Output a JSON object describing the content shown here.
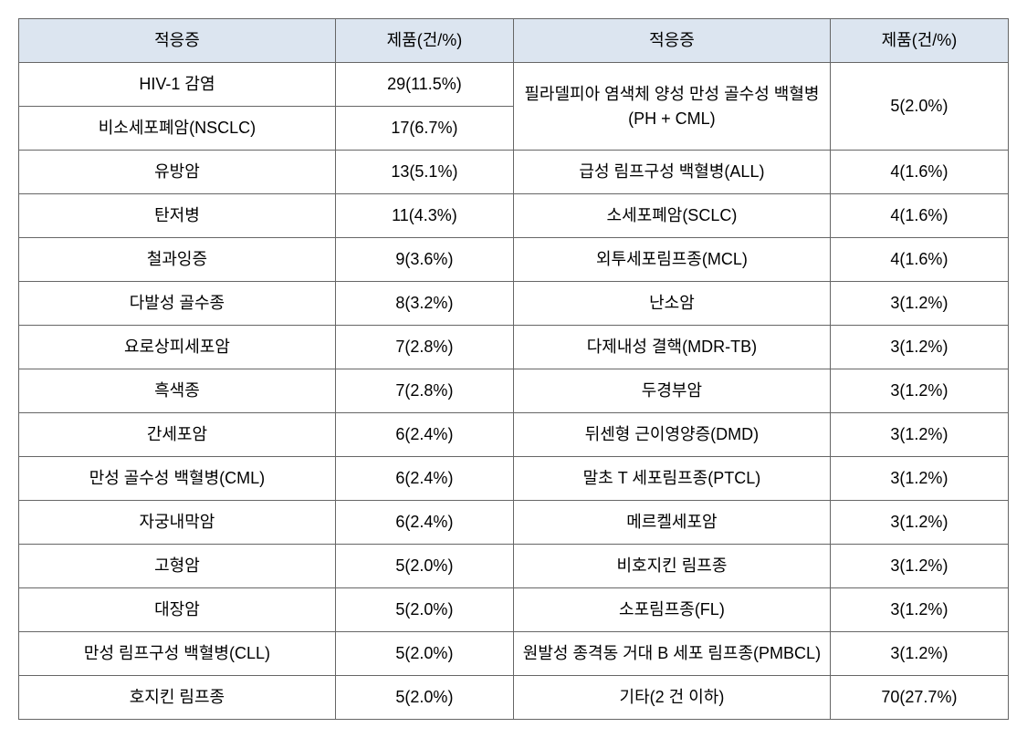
{
  "table": {
    "type": "table",
    "header_bg_color": "#dce5f0",
    "border_color": "#666666",
    "text_color": "#000000",
    "font_size": 18,
    "headers": {
      "col1": "적응증",
      "col2": "제품(건/%)",
      "col3": "적응증",
      "col4": "제품(건/%)"
    },
    "left_rows": [
      {
        "indication": "HIV-1 감염",
        "count": "29(11.5%)"
      },
      {
        "indication": "비소세포폐암(NSCLC)",
        "count": "17(6.7%)"
      },
      {
        "indication": "유방암",
        "count": "13(5.1%)"
      },
      {
        "indication": "탄저병",
        "count": "11(4.3%)"
      },
      {
        "indication": "철과잉증",
        "count": "9(3.6%)"
      },
      {
        "indication": "다발성 골수종",
        "count": "8(3.2%)"
      },
      {
        "indication": "요로상피세포암",
        "count": "7(2.8%)"
      },
      {
        "indication": "흑색종",
        "count": "7(2.8%)"
      },
      {
        "indication": "간세포암",
        "count": "6(2.4%)"
      },
      {
        "indication": "만성 골수성 백혈병(CML)",
        "count": "6(2.4%)"
      },
      {
        "indication": "자궁내막암",
        "count": "6(2.4%)"
      },
      {
        "indication": "고형암",
        "count": "5(2.0%)"
      },
      {
        "indication": "대장암",
        "count": "5(2.0%)"
      },
      {
        "indication": "만성 림프구성 백혈병(CLL)",
        "count": "5(2.0%)"
      },
      {
        "indication": "호지킨 림프종",
        "count": "5(2.0%)"
      }
    ],
    "right_rows": [
      {
        "indication": "필라델피아 염색체 양성 만성 골수성 백혈병(PH + CML)",
        "count": "5(2.0%)",
        "rowspan": 2
      },
      {
        "indication": "급성 림프구성 백혈병(ALL)",
        "count": "4(1.6%)"
      },
      {
        "indication": "소세포폐암(SCLC)",
        "count": "4(1.6%)"
      },
      {
        "indication": "외투세포림프종(MCL)",
        "count": "4(1.6%)"
      },
      {
        "indication": "난소암",
        "count": "3(1.2%)"
      },
      {
        "indication": "다제내성 결핵(MDR-TB)",
        "count": "3(1.2%)"
      },
      {
        "indication": "두경부암",
        "count": "3(1.2%)"
      },
      {
        "indication": "뒤센형 근이영양증(DMD)",
        "count": "3(1.2%)"
      },
      {
        "indication": "말초 T 세포림프종(PTCL)",
        "count": "3(1.2%)"
      },
      {
        "indication": "메르켈세포암",
        "count": "3(1.2%)"
      },
      {
        "indication": "비호지킨 림프종",
        "count": "3(1.2%)"
      },
      {
        "indication": "소포림프종(FL)",
        "count": "3(1.2%)"
      },
      {
        "indication": "원발성 종격동 거대 B 세포 림프종(PMBCL)",
        "count": "3(1.2%)"
      },
      {
        "indication": "기타(2 건 이하)",
        "count": "70(27.7%)"
      }
    ]
  }
}
